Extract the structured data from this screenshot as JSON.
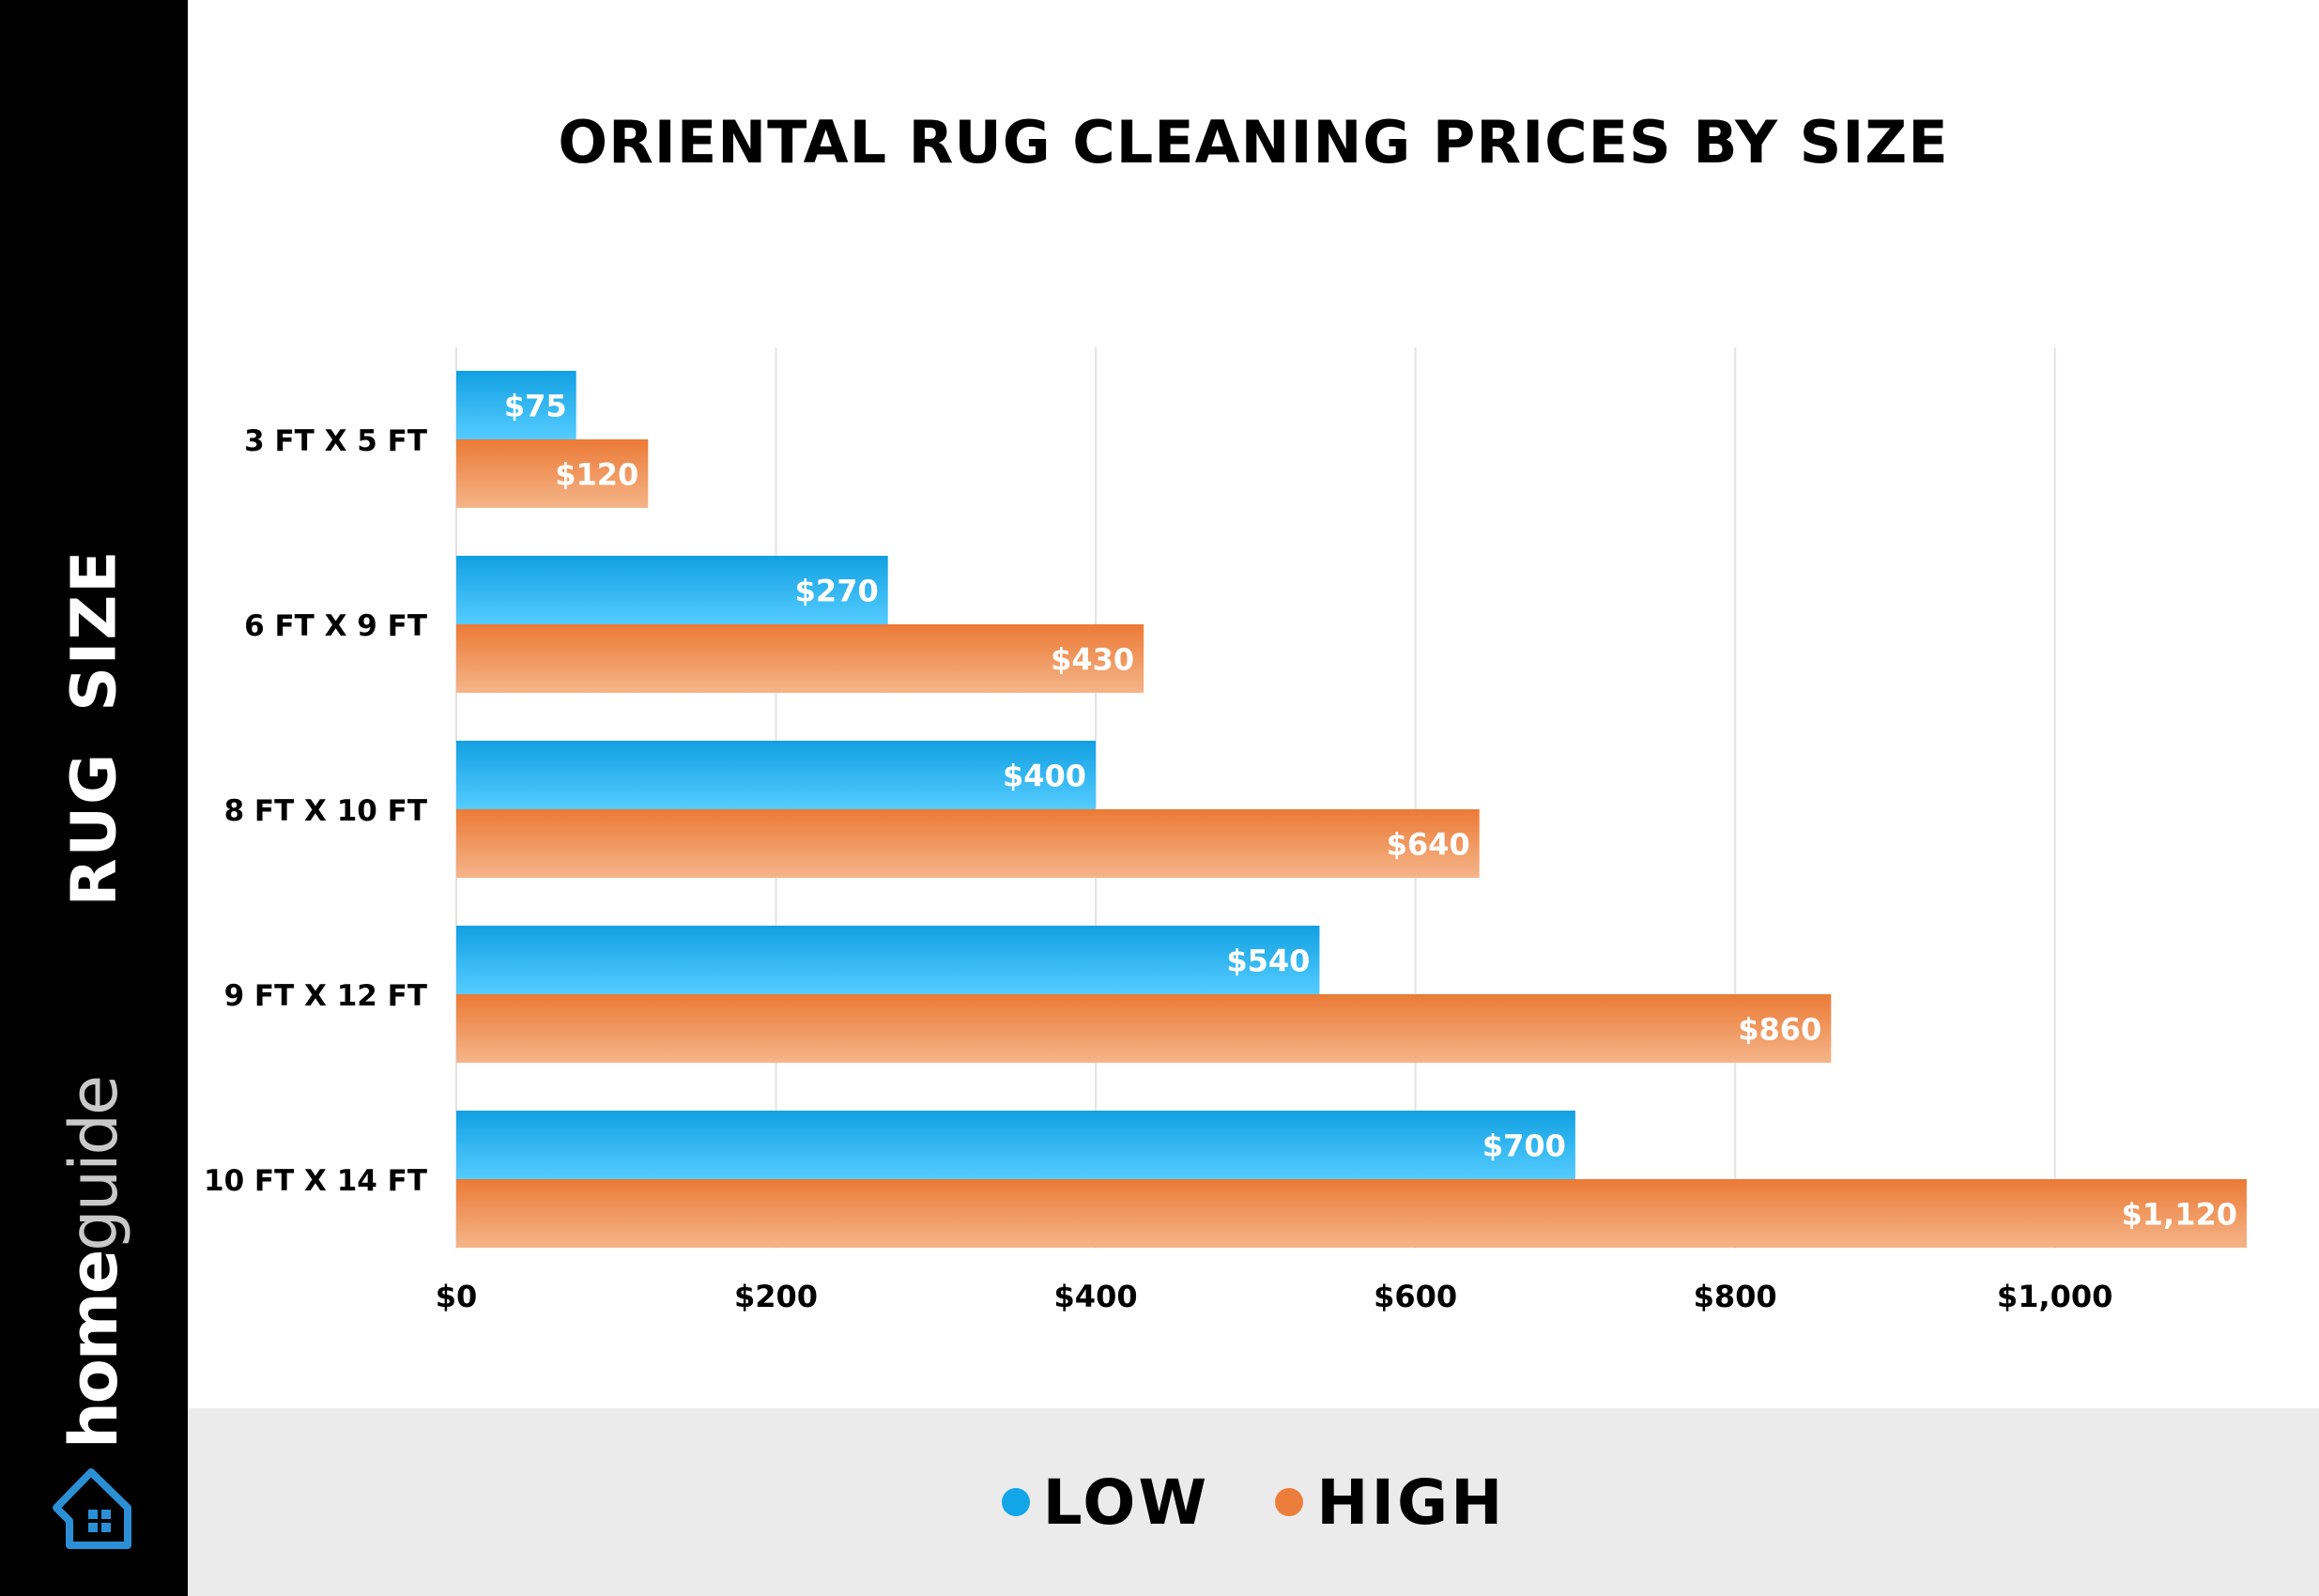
{
  "chart_data": {
    "type": "bar",
    "orientation": "horizontal",
    "title": "ORIENTAL RUG CLEANING PRICES BY SIZE",
    "ylabel": "RUG SIZE",
    "xlabel": "",
    "categories": [
      "3 FT  X  5 FT",
      "6 FT  X  9 FT",
      "8 FT  X  10 FT",
      "9 FT  X  12 FT",
      "10 FT  X  14 FT"
    ],
    "series": [
      {
        "name": "LOW",
        "values": [
          75,
          270,
          400,
          540,
          700
        ],
        "labels": [
          "$75",
          "$270",
          "$400",
          "$540",
          "$700"
        ],
        "color": "#1aa8e8"
      },
      {
        "name": "HIGH",
        "values": [
          120,
          430,
          640,
          860,
          1120
        ],
        "labels": [
          "$120",
          "$430",
          "$640",
          "$860",
          "$1,120"
        ],
        "color": "#ec7e3c"
      }
    ],
    "xlim": [
      0,
      1120
    ],
    "xticks": [
      0,
      200,
      400,
      600,
      800,
      1000
    ],
    "xtick_labels": [
      "$0",
      "$200",
      "$400",
      "$600",
      "$800",
      "$1,000"
    ],
    "grid": "vertical",
    "legend_position": "bottom"
  },
  "brand": {
    "name_part1": "home",
    "name_part2": "guide",
    "icon": "house-icon",
    "icon_color": "#2b8fd6"
  }
}
